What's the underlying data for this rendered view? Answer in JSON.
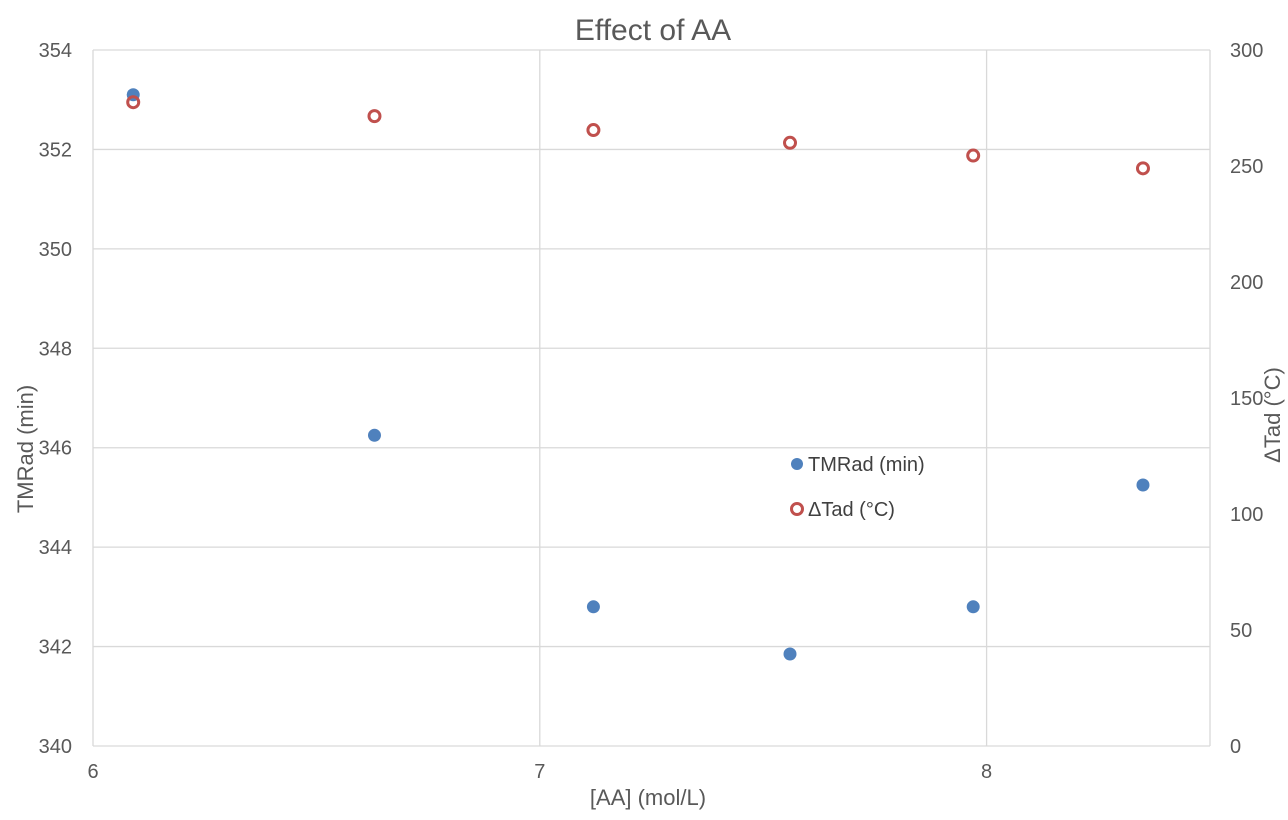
{
  "chart_data": {
    "type": "scatter",
    "title": "Effect of AA",
    "xlabel": "[AA] (mol/L)",
    "ylabel": "TMRad (min)",
    "y2label": "ΔTad (°C)",
    "xlim": [
      6,
      8.5
    ],
    "ylim": [
      340,
      354
    ],
    "y2lim": [
      0,
      300
    ],
    "x_ticks": [
      "6",
      "7",
      "8"
    ],
    "y_ticks": [
      "340",
      "342",
      "344",
      "346",
      "348",
      "350",
      "352",
      "354"
    ],
    "y2_ticks": [
      "0",
      "50",
      "100",
      "150",
      "200",
      "250",
      "300"
    ],
    "grid": true,
    "legend_position": "inside-center-right",
    "series": [
      {
        "name": "TMRad (min)",
        "axis": "left",
        "marker": "filled-circle",
        "color": "#4f81bd",
        "x": [
          6.09,
          6.63,
          7.12,
          7.56,
          7.97,
          8.35
        ],
        "y": [
          353.1,
          346.25,
          342.8,
          341.85,
          342.8,
          345.25
        ]
      },
      {
        "name": "ΔTad (°C)",
        "axis": "right",
        "marker": "open-circle",
        "color": "#c0504d",
        "x": [
          6.09,
          6.63,
          7.12,
          7.56,
          7.97,
          8.35
        ],
        "y": [
          277.5,
          271.5,
          265.5,
          260,
          254.5,
          249
        ]
      }
    ]
  }
}
